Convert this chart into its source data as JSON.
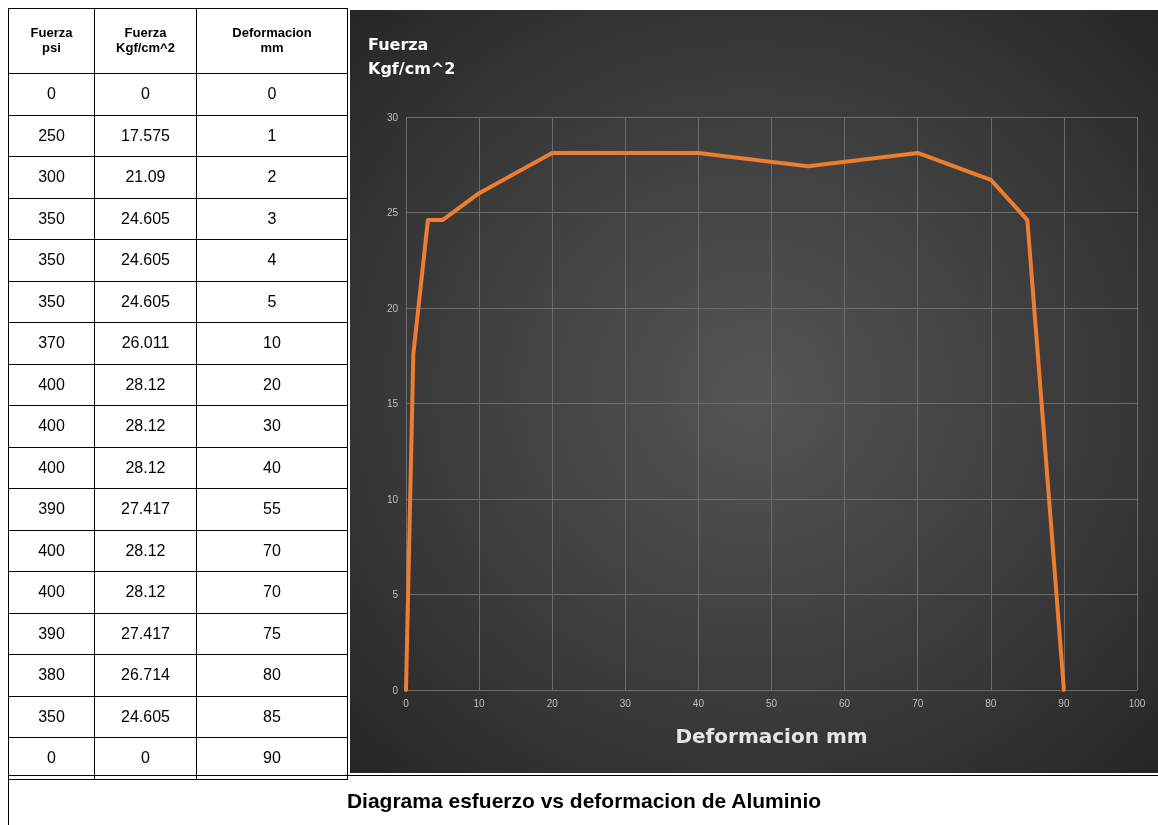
{
  "chart_data": {
    "type": "line",
    "title": "Diagrama esfuerzo vs deformacion de Aluminio",
    "xlabel": "Deformacion mm",
    "ylabel": "Fuerza\nKgf/cm^2",
    "annotations": [
      "Fuerza\npsi",
      "Fuerza\nKgf/cm^2",
      "Deformacion\nmm",
      "0",
      "0",
      "0",
      "250",
      "17.575",
      "1",
      "300",
      "21.09",
      "2",
      "350",
      "24.605",
      "3",
      "350",
      "24.605",
      "4",
      "350",
      "24.605",
      "5",
      "370",
      "26.011",
      "10",
      "400",
      "28.12",
      "20",
      "400",
      "28.12",
      "30",
      "400",
      "28.12",
      "40",
      "390",
      "27.417",
      "55",
      "400",
      "28.12",
      "70",
      "400",
      "28.12",
      "70",
      "390",
      "27.417",
      "75",
      "380",
      "26.714",
      "80",
      "350",
      "24.605",
      "85",
      "0",
      "0",
      "90"
    ],
    "x": [
      0,
      1,
      2,
      3,
      4,
      5,
      10,
      20,
      30,
      40,
      55,
      70,
      70,
      75,
      80,
      85,
      90
    ],
    "series": [
      {
        "color": "#ed7d31",
        "values": [
          0,
          17.575,
          21.09,
          24.605,
          24.605,
          24.605,
          26.011,
          28.12,
          28.12,
          28.12,
          27.417,
          28.12,
          28.12,
          27.417,
          26.714,
          24.605,
          0
        ]
      }
    ],
    "xlim": [
      0,
      100
    ],
    "xticks": [
      0,
      10,
      20,
      30,
      40,
      50,
      60,
      70,
      80,
      90,
      100
    ],
    "ylim": [
      0,
      30
    ],
    "yticks": [
      0,
      5,
      10,
      15,
      20,
      25,
      30
    ],
    "grid": true,
    "marker": "none",
    "line_style": "solid"
  }
}
